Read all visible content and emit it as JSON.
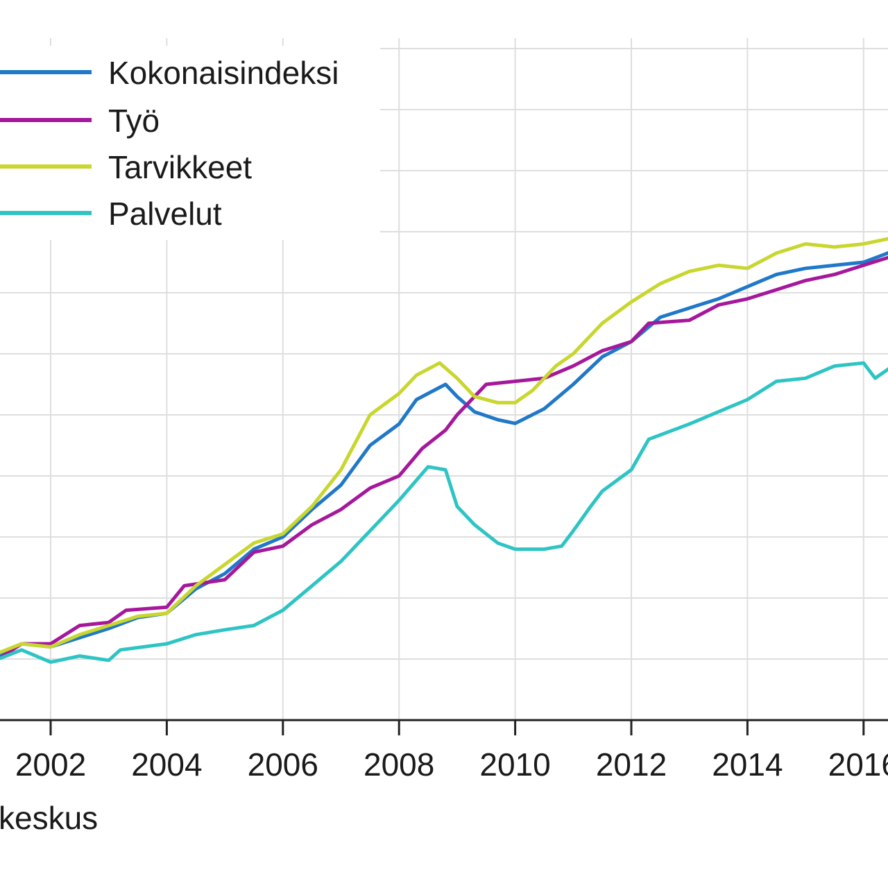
{
  "chart_data": {
    "type": "line",
    "title": "",
    "xlabel": "",
    "ylabel": "",
    "x_ticks": [
      "2002",
      "2004",
      "2006",
      "2008",
      "2010",
      "2012",
      "2014",
      "2016"
    ],
    "xlim": [
      2001.1,
      2016.5
    ],
    "ylim": [
      90,
      200
    ],
    "grid": true,
    "legend_position": "top-left",
    "series": [
      {
        "name": "Kokonaisindeksi",
        "color": "#1f78c8",
        "points": [
          [
            2001.1,
            100.5
          ],
          [
            2001.5,
            102.5
          ],
          [
            2002.0,
            102.0
          ],
          [
            2002.5,
            103.5
          ],
          [
            2003.0,
            105.0
          ],
          [
            2003.5,
            106.8
          ],
          [
            2004.0,
            107.5
          ],
          [
            2004.5,
            111.5
          ],
          [
            2005.0,
            114.0
          ],
          [
            2005.5,
            118.0
          ],
          [
            2006.0,
            120.0
          ],
          [
            2006.5,
            124.5
          ],
          [
            2007.0,
            128.5
          ],
          [
            2007.5,
            135.0
          ],
          [
            2008.0,
            138.5
          ],
          [
            2008.3,
            142.5
          ],
          [
            2008.8,
            145.0
          ],
          [
            2009.0,
            143.0
          ],
          [
            2009.3,
            140.5
          ],
          [
            2009.7,
            139.2
          ],
          [
            2010.0,
            138.6
          ],
          [
            2010.5,
            141.0
          ],
          [
            2011.0,
            145.0
          ],
          [
            2011.5,
            149.5
          ],
          [
            2012.0,
            152.0
          ],
          [
            2012.5,
            156.0
          ],
          [
            2013.0,
            157.5
          ],
          [
            2013.5,
            159.0
          ],
          [
            2014.0,
            161.0
          ],
          [
            2014.5,
            163.0
          ],
          [
            2015.0,
            164.0
          ],
          [
            2015.5,
            164.5
          ],
          [
            2016.0,
            165.0
          ],
          [
            2016.5,
            166.8
          ]
        ]
      },
      {
        "name": "Työ",
        "color": "#a5179b",
        "points": [
          [
            2001.1,
            100.0
          ],
          [
            2001.5,
            102.5
          ],
          [
            2002.0,
            102.5
          ],
          [
            2002.5,
            105.5
          ],
          [
            2003.0,
            106.0
          ],
          [
            2003.3,
            108.0
          ],
          [
            2004.0,
            108.5
          ],
          [
            2004.3,
            112.0
          ],
          [
            2005.0,
            113.0
          ],
          [
            2005.5,
            117.5
          ],
          [
            2006.0,
            118.5
          ],
          [
            2006.5,
            122.0
          ],
          [
            2007.0,
            124.5
          ],
          [
            2007.5,
            128.0
          ],
          [
            2008.0,
            130.0
          ],
          [
            2008.4,
            134.5
          ],
          [
            2008.8,
            137.5
          ],
          [
            2009.0,
            140.0
          ],
          [
            2009.5,
            145.0
          ],
          [
            2010.0,
            145.5
          ],
          [
            2010.5,
            146.0
          ],
          [
            2011.0,
            148.0
          ],
          [
            2011.5,
            150.5
          ],
          [
            2012.0,
            152.0
          ],
          [
            2012.3,
            155.0
          ],
          [
            2013.0,
            155.5
          ],
          [
            2013.5,
            158.0
          ],
          [
            2014.0,
            159.0
          ],
          [
            2014.5,
            160.5
          ],
          [
            2015.0,
            162.0
          ],
          [
            2015.5,
            163.0
          ],
          [
            2016.0,
            164.5
          ],
          [
            2016.5,
            166.0
          ]
        ]
      },
      {
        "name": "Tarvikkeet",
        "color": "#c8d62e",
        "points": [
          [
            2001.1,
            101.0
          ],
          [
            2001.5,
            102.5
          ],
          [
            2002.0,
            102.0
          ],
          [
            2002.5,
            104.0
          ],
          [
            2003.0,
            105.5
          ],
          [
            2003.5,
            107.0
          ],
          [
            2004.0,
            107.5
          ],
          [
            2004.5,
            112.0
          ],
          [
            2005.0,
            115.5
          ],
          [
            2005.5,
            119.0
          ],
          [
            2006.0,
            120.5
          ],
          [
            2006.5,
            125.0
          ],
          [
            2007.0,
            131.0
          ],
          [
            2007.5,
            140.0
          ],
          [
            2008.0,
            143.5
          ],
          [
            2008.3,
            146.5
          ],
          [
            2008.7,
            148.5
          ],
          [
            2009.0,
            146.0
          ],
          [
            2009.3,
            143.0
          ],
          [
            2009.7,
            142.0
          ],
          [
            2010.0,
            142.0
          ],
          [
            2010.3,
            144.0
          ],
          [
            2010.7,
            148.0
          ],
          [
            2011.0,
            150.0
          ],
          [
            2011.5,
            155.0
          ],
          [
            2012.0,
            158.5
          ],
          [
            2012.5,
            161.5
          ],
          [
            2013.0,
            163.5
          ],
          [
            2013.5,
            164.5
          ],
          [
            2014.0,
            164.0
          ],
          [
            2014.5,
            166.5
          ],
          [
            2015.0,
            168.0
          ],
          [
            2015.5,
            167.5
          ],
          [
            2016.0,
            168.0
          ],
          [
            2016.5,
            169.0
          ]
        ]
      },
      {
        "name": "Palvelut",
        "color": "#2ec4c4",
        "points": [
          [
            2001.1,
            100.0
          ],
          [
            2001.5,
            101.5
          ],
          [
            2002.0,
            99.5
          ],
          [
            2002.5,
            100.5
          ],
          [
            2003.0,
            99.8
          ],
          [
            2003.2,
            101.5
          ],
          [
            2004.0,
            102.5
          ],
          [
            2004.5,
            104.0
          ],
          [
            2005.0,
            104.8
          ],
          [
            2005.5,
            105.5
          ],
          [
            2006.0,
            108.0
          ],
          [
            2006.5,
            112.0
          ],
          [
            2007.0,
            116.0
          ],
          [
            2007.5,
            121.0
          ],
          [
            2008.0,
            126.0
          ],
          [
            2008.5,
            131.5
          ],
          [
            2008.8,
            131.0
          ],
          [
            2009.0,
            125.0
          ],
          [
            2009.3,
            122.0
          ],
          [
            2009.7,
            119.0
          ],
          [
            2010.0,
            118.0
          ],
          [
            2010.5,
            118.0
          ],
          [
            2010.8,
            118.5
          ],
          [
            2011.0,
            121.0
          ],
          [
            2011.3,
            125.0
          ],
          [
            2011.5,
            127.5
          ],
          [
            2012.0,
            131.0
          ],
          [
            2012.3,
            136.0
          ],
          [
            2013.0,
            138.5
          ],
          [
            2013.5,
            140.5
          ],
          [
            2014.0,
            142.5
          ],
          [
            2014.5,
            145.5
          ],
          [
            2015.0,
            146.0
          ],
          [
            2015.5,
            148.0
          ],
          [
            2016.0,
            148.5
          ],
          [
            2016.2,
            146.0
          ],
          [
            2016.5,
            148.0
          ]
        ]
      }
    ]
  },
  "legend": {
    "items": [
      "Kokonaisindeksi",
      "Työ",
      "Tarvikkeet",
      "Palvelut"
    ]
  },
  "source": {
    "text": "keskus"
  }
}
